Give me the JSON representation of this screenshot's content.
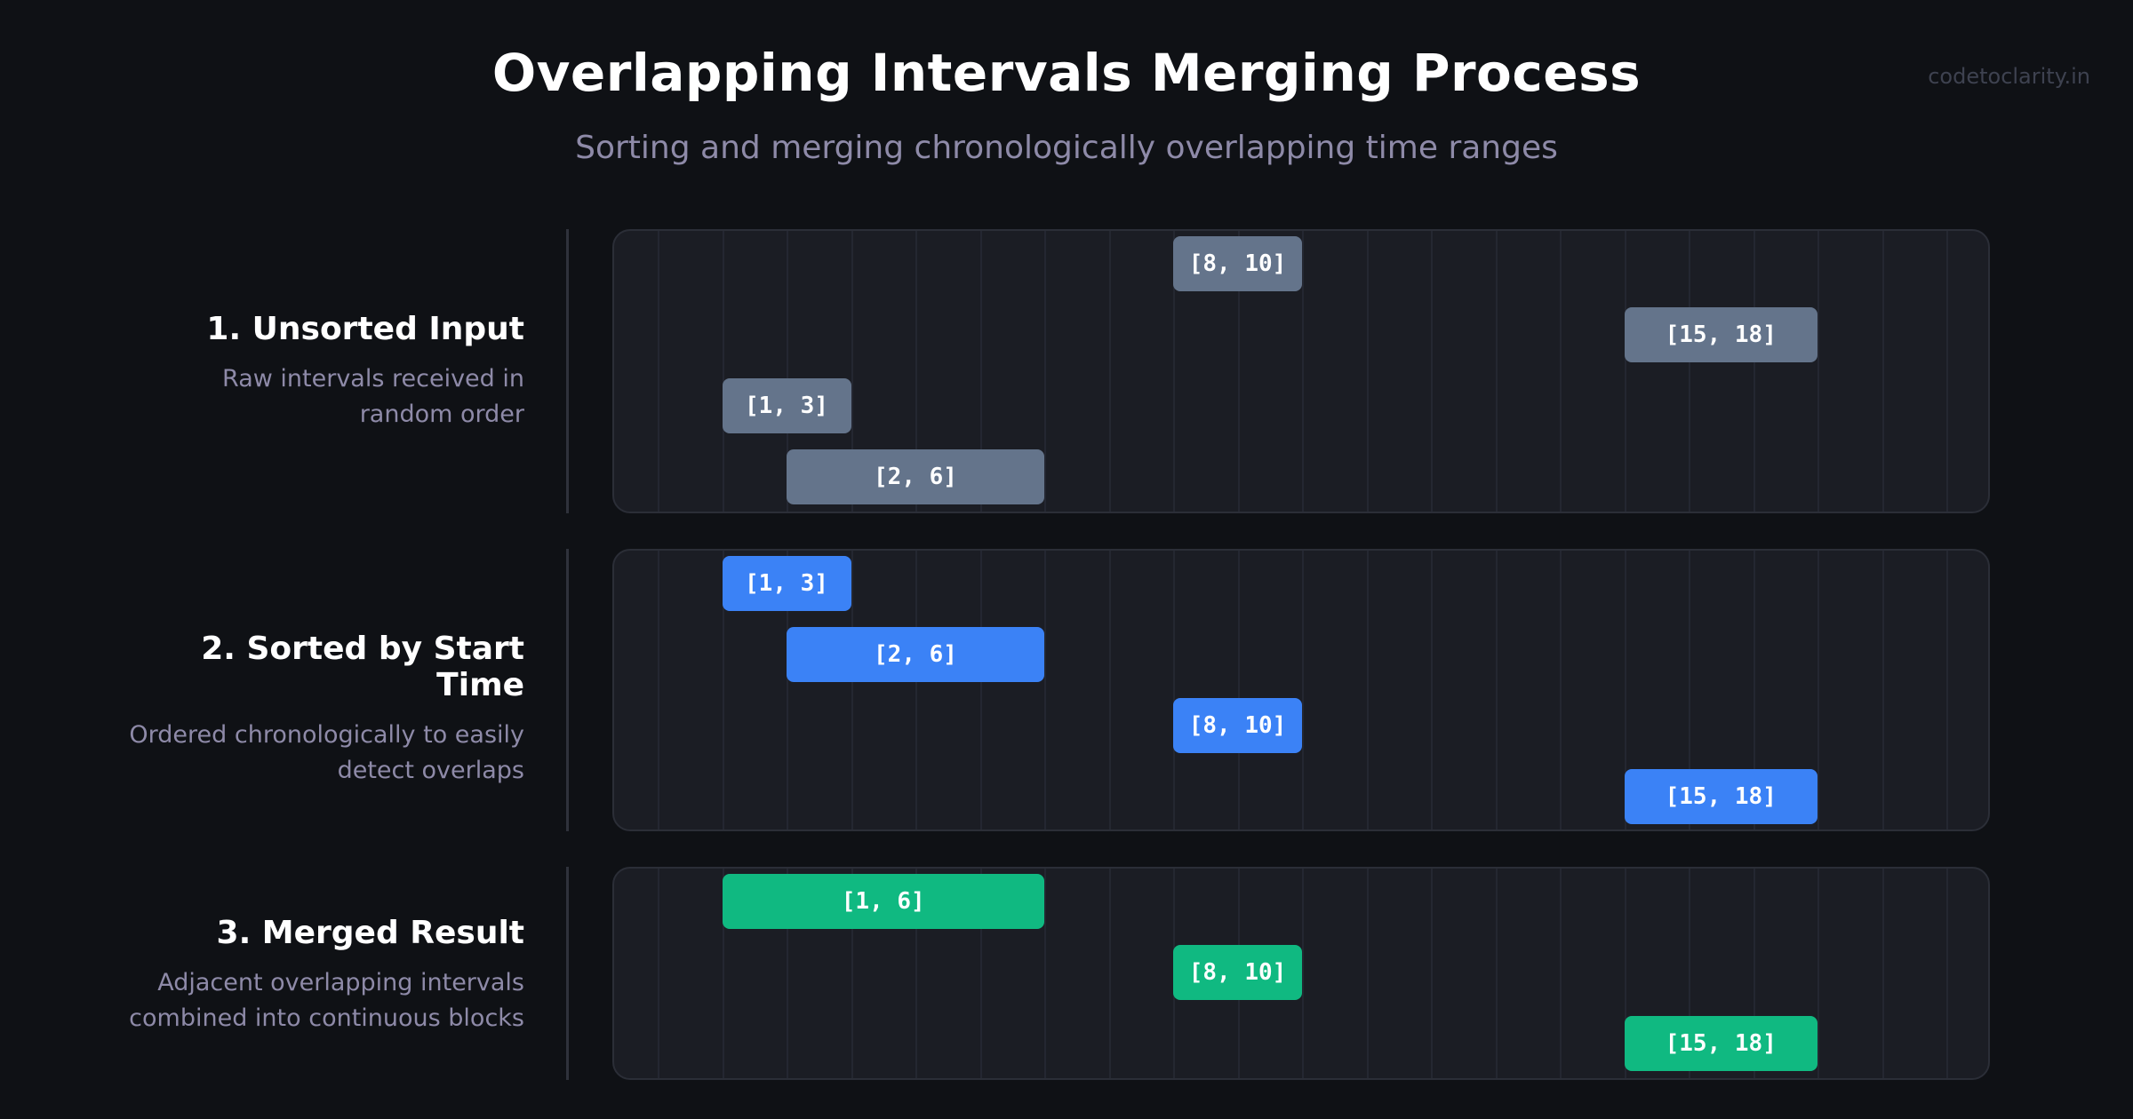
{
  "header": {
    "title": "Overlapping Intervals Merging Process",
    "subtitle": "Sorting and merging chronologically overlapping time ranges",
    "watermark": "codetoclarity.in"
  },
  "colors": {
    "unsorted": "#64748b",
    "sorted": "#3b82f6",
    "merged": "#10b981"
  },
  "timeline": {
    "x_min": 0,
    "x_max": 21
  },
  "sections": [
    {
      "title": "1. Unsorted Input",
      "description": "Raw intervals received in random order",
      "color_key": "unsorted",
      "intervals": [
        {
          "label": "[8, 10]",
          "start": 8,
          "end": 10
        },
        {
          "label": "[15, 18]",
          "start": 15,
          "end": 18
        },
        {
          "label": "[1, 3]",
          "start": 1,
          "end": 3
        },
        {
          "label": "[2, 6]",
          "start": 2,
          "end": 6
        }
      ]
    },
    {
      "title": "2. Sorted by Start Time",
      "description": "Ordered chronologically to easily detect overlaps",
      "color_key": "sorted",
      "intervals": [
        {
          "label": "[1, 3]",
          "start": 1,
          "end": 3
        },
        {
          "label": "[2, 6]",
          "start": 2,
          "end": 6
        },
        {
          "label": "[8, 10]",
          "start": 8,
          "end": 10
        },
        {
          "label": "[15, 18]",
          "start": 15,
          "end": 18
        }
      ]
    },
    {
      "title": "3. Merged Result",
      "description": "Adjacent overlapping intervals combined into continuous blocks",
      "color_key": "merged",
      "intervals": [
        {
          "label": "[1, 6]",
          "start": 1,
          "end": 6
        },
        {
          "label": "[8, 10]",
          "start": 8,
          "end": 10
        },
        {
          "label": "[15, 18]",
          "start": 15,
          "end": 18
        }
      ]
    }
  ]
}
